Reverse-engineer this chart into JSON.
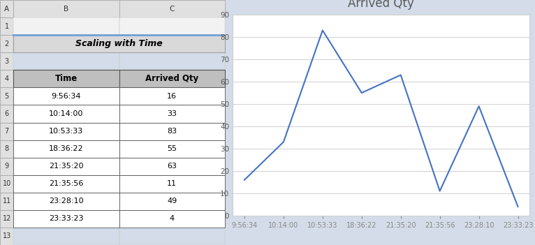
{
  "title": "Scaling with Time",
  "table_headers": [
    "Time",
    "Arrived Qty"
  ],
  "table_data": [
    [
      "9:56:34",
      16
    ],
    [
      "10:14:00",
      33
    ],
    [
      "10:53:33",
      83
    ],
    [
      "18:36:22",
      55
    ],
    [
      "21:35:20",
      63
    ],
    [
      "21:35:56",
      11
    ],
    [
      "23:28:10",
      49
    ],
    [
      "23:33:23",
      4
    ]
  ],
  "chart_title": "Arrived Qty",
  "x_labels": [
    "9:56:34",
    "10:14:00",
    "10:53:33",
    "18:36:22",
    "21:35:20",
    "21:35:56",
    "23:28:10",
    "23:33:23"
  ],
  "y_values": [
    16,
    33,
    83,
    55,
    63,
    11,
    49,
    4
  ],
  "y_ticks": [
    0,
    10,
    20,
    30,
    40,
    50,
    60,
    70,
    80,
    90
  ],
  "ylim": [
    0,
    90
  ],
  "line_color": "#4472C4",
  "chart_bg": "#ffffff",
  "grid_color": "#d0d0d0",
  "title_color": "#595959",
  "tick_label_color": "#595959",
  "header_bg": "#bfbfbf",
  "header_text_color": "#000000",
  "cell_bg": "#ffffff",
  "cell_text_color": "#000000",
  "title_bg": "#d9d9d9",
  "title_text_color": "#000000",
  "excel_bg": "#d3dce8",
  "col_header_bg": "#d9d9d9",
  "row_header_bg": "#d9d9d9"
}
